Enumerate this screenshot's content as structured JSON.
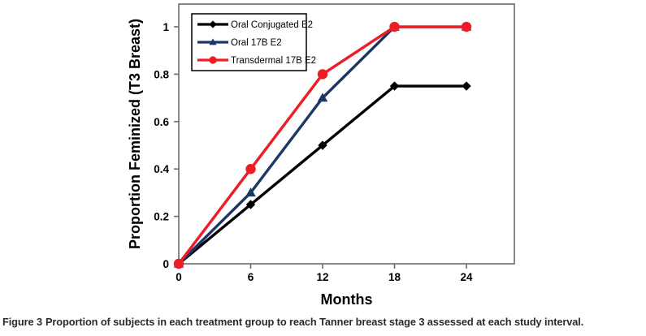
{
  "figure": {
    "caption_label": "Figure 3",
    "caption_text": "Proportion of subjects in each treatment group to reach Tanner breast stage 3 assessed at each study interval."
  },
  "chart_data": {
    "type": "line",
    "title": "",
    "xlabel": "Months",
    "ylabel": "Proportion Feminized (T3 Breast)",
    "x": [
      0,
      6,
      12,
      18,
      24
    ],
    "x_tick_labels": [
      "0",
      "6",
      "12",
      "18",
      "24"
    ],
    "y_ticks": [
      0,
      0.2,
      0.4,
      0.6,
      0.8,
      1
    ],
    "y_tick_labels": [
      "0",
      "0.2",
      "0.4",
      "0.6",
      "0.8",
      "1"
    ],
    "xlim": [
      0,
      28
    ],
    "ylim": [
      0,
      1.096
    ],
    "grid": false,
    "legend_position": "top-left-inside",
    "axis_color": "#6b6b6b",
    "text_color": "#000000",
    "series": [
      {
        "name": "Oral Conjugated E2",
        "color": "#000000",
        "marker": "diamond",
        "values": [
          0,
          0.25,
          0.5,
          0.75,
          0.75
        ]
      },
      {
        "name": "Oral 17B E2",
        "color": "#1c3766",
        "marker": "triangle",
        "values": [
          0,
          0.3,
          0.7,
          1,
          1
        ]
      },
      {
        "name": "Transdermal 17B E2",
        "color": "#ee1c25",
        "marker": "circle",
        "values": [
          0,
          0.4,
          0.8,
          1,
          1
        ]
      }
    ]
  }
}
